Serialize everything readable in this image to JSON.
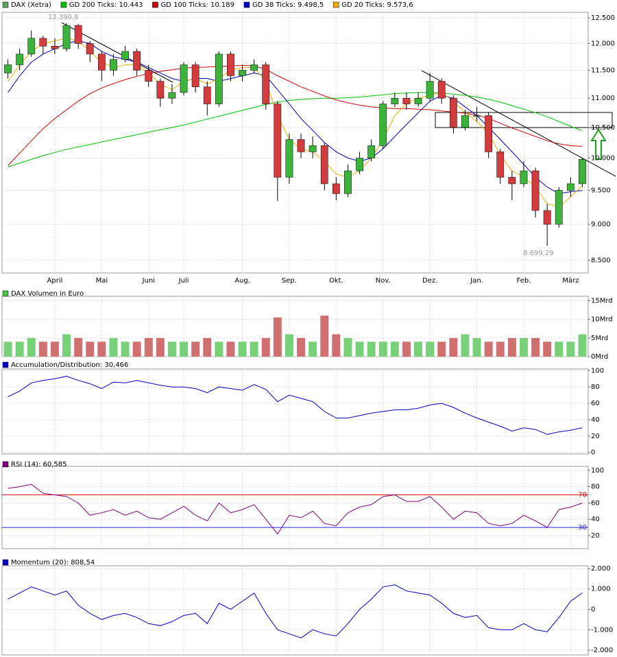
{
  "chart_data": [
    {
      "type": "candlestick",
      "title": "DAX (Xetra)",
      "log": true,
      "grid": true,
      "up_color": "#3cb43c",
      "down_color": "#d23c3c",
      "categories": [
        null,
        null,
        null,
        null,
        "April",
        null,
        null,
        null,
        "Mai",
        null,
        null,
        null,
        "Juni",
        null,
        null,
        "Juli",
        null,
        null,
        null,
        null,
        "Aug.",
        null,
        null,
        null,
        "Sep.",
        null,
        null,
        null,
        "Okt.",
        null,
        null,
        null,
        "Nov.",
        null,
        null,
        null,
        "Dez.",
        null,
        null,
        null,
        "Jan.",
        null,
        null,
        null,
        "Feb.",
        null,
        null,
        null,
        "März",
        null
      ],
      "open": [
        11450,
        11600,
        11800,
        12100,
        11950,
        11900,
        12350,
        12000,
        11800,
        11500,
        11700,
        11850,
        11500,
        11300,
        11000,
        11100,
        11600,
        11200,
        10900,
        11800,
        11400,
        11500,
        11600,
        10900,
        9700,
        10300,
        10100,
        10200,
        9600,
        9450,
        9800,
        10000,
        10200,
        10900,
        11000,
        10900,
        11000,
        11300,
        11000,
        10500,
        10700,
        10700,
        10100,
        9700,
        9600,
        9800,
        9200,
        9000,
        9500,
        9600
      ],
      "high": [
        11700,
        11900,
        12250,
        12150,
        12100,
        12391,
        12380,
        12050,
        11850,
        11800,
        11950,
        11900,
        11600,
        11350,
        11250,
        11650,
        11650,
        11300,
        11850,
        11850,
        11600,
        11700,
        11650,
        10950,
        10400,
        10400,
        10350,
        10250,
        9700,
        9900,
        10100,
        10300,
        10950,
        11100,
        11100,
        11100,
        11450,
        11350,
        11050,
        10800,
        10850,
        10750,
        10150,
        9800,
        9950,
        9850,
        9300,
        9550,
        9700,
        10000
      ],
      "low": [
        11350,
        11500,
        11750,
        11800,
        11800,
        11850,
        11900,
        11650,
        11300,
        11400,
        11650,
        11400,
        11200,
        10850,
        10900,
        11050,
        11100,
        10700,
        10850,
        11300,
        11300,
        11450,
        10800,
        9340,
        9600,
        10000,
        10000,
        9500,
        9350,
        9400,
        9750,
        9950,
        10150,
        10850,
        10800,
        10850,
        10950,
        10900,
        10400,
        10450,
        10600,
        10000,
        9600,
        9350,
        9550,
        9100,
        8699,
        8950,
        9400,
        9550
      ],
      "close": [
        11600,
        11800,
        12100,
        11950,
        11900,
        12350,
        12000,
        11800,
        11500,
        11700,
        11850,
        11500,
        11300,
        11000,
        11100,
        11600,
        11200,
        10900,
        11800,
        11400,
        11500,
        11600,
        10900,
        9700,
        10300,
        10100,
        10200,
        9600,
        9450,
        9800,
        10000,
        10200,
        10900,
        11000,
        10900,
        11000,
        11300,
        11000,
        10500,
        10700,
        10700,
        10100,
        9700,
        9600,
        9800,
        9200,
        9000,
        9500,
        9600,
        9980
      ],
      "series": [
        {
          "name": "GD 200 Ticks: 10.443",
          "color": "#00c000",
          "values": [
            9860,
            9920,
            9980,
            10040,
            10090,
            10140,
            10180,
            10220,
            10260,
            10300,
            10340,
            10380,
            10420,
            10460,
            10500,
            10540,
            10590,
            10640,
            10690,
            10740,
            10790,
            10840,
            10890,
            10930,
            10960,
            10980,
            10990,
            11000,
            11000,
            11010,
            11020,
            11040,
            11060,
            11080,
            11090,
            11100,
            11100,
            11090,
            11070,
            11050,
            11020,
            10980,
            10930,
            10870,
            10810,
            10750,
            10680,
            10600,
            10520,
            10443
          ]
        },
        {
          "name": "GD 100 Ticks: 10.189",
          "color": "#d00000",
          "values": [
            9880,
            10080,
            10280,
            10480,
            10650,
            10800,
            10950,
            11080,
            11180,
            11260,
            11330,
            11390,
            11440,
            11480,
            11510,
            11540,
            11550,
            11560,
            11570,
            11580,
            11590,
            11580,
            11520,
            11400,
            11300,
            11200,
            11120,
            11040,
            10970,
            10920,
            10880,
            10850,
            10830,
            10820,
            10820,
            10810,
            10800,
            10780,
            10760,
            10740,
            10710,
            10650,
            10570,
            10490,
            10420,
            10350,
            10280,
            10230,
            10200,
            10189
          ]
        },
        {
          "name": "GD 38 Ticks: 9.498,5",
          "color": "#0000c0",
          "values": [
            11100,
            11400,
            11650,
            11800,
            11900,
            12000,
            12050,
            12000,
            11850,
            11750,
            11700,
            11650,
            11550,
            11450,
            11350,
            11300,
            11350,
            11350,
            11300,
            11350,
            11400,
            11450,
            11400,
            11150,
            10900,
            10650,
            10450,
            10250,
            10100,
            10000,
            9950,
            10000,
            10150,
            10350,
            10550,
            10750,
            10950,
            11050,
            11000,
            10850,
            10700,
            10500,
            10300,
            10100,
            9900,
            9700,
            9550,
            9450,
            9480,
            9498.5
          ]
        },
        {
          "name": "GD 20 Ticks: 9.573,6",
          "color": "#f0b000",
          "values": [
            11300,
            11600,
            11850,
            12000,
            12050,
            12100,
            12050,
            11850,
            11650,
            11550,
            11600,
            11600,
            11450,
            11250,
            11150,
            11300,
            11350,
            11250,
            11350,
            11500,
            11550,
            11550,
            11300,
            10700,
            10300,
            10150,
            10100,
            9950,
            9750,
            9700,
            9800,
            10000,
            10300,
            10700,
            10900,
            11000,
            11050,
            11100,
            10950,
            10750,
            10600,
            10400,
            10050,
            9800,
            9700,
            9550,
            9300,
            9250,
            9400,
            9573.6
          ]
        }
      ],
      "annotations": [
        "12.390,8",
        "8.699,29"
      ],
      "ylim": [
        8330,
        12610
      ],
      "yticks": [
        {
          "value": 8500,
          "label": "8.500"
        },
        {
          "value": 9000,
          "label": "9.000"
        },
        {
          "value": 9500,
          "label": "9.500"
        },
        {
          "value": 10000,
          "label": "10.000"
        },
        {
          "value": 10500,
          "label": "10.500"
        },
        {
          "value": 11000,
          "label": "11.000"
        },
        {
          "value": 11500,
          "label": "11.500"
        },
        {
          "value": 12000,
          "label": "12.000"
        },
        {
          "value": 12500,
          "label": "12.500"
        }
      ]
    },
    {
      "type": "bar",
      "title": "DAX Volumen in Euro",
      "grid": true,
      "color": "#50c050",
      "up_color": "#78d078",
      "down_color": "#d07070",
      "values": [
        4,
        4,
        5,
        4,
        4,
        6,
        5,
        4,
        4,
        5,
        4,
        4,
        5,
        5,
        4,
        4,
        4,
        5,
        4,
        4,
        4,
        4,
        5,
        10.5,
        6,
        5,
        4,
        11,
        6,
        5,
        4,
        4,
        4,
        4,
        4,
        4,
        4,
        4,
        5,
        6,
        5,
        4,
        4,
        5,
        5,
        5,
        4,
        4,
        4,
        6
      ],
      "ylim": [
        0,
        16.2
      ],
      "yticks": [
        {
          "value": 0,
          "label": "0Mrd"
        },
        {
          "value": 5,
          "label": "5Mrd"
        },
        {
          "value": 10,
          "label": "10Mrd"
        },
        {
          "value": 15,
          "label": "15Mrd"
        }
      ]
    },
    {
      "type": "line",
      "title": "Accumulation/Distribution: 30,466",
      "grid": true,
      "color": "#0000c0",
      "values": [
        68,
        75,
        85,
        88,
        90,
        93,
        88,
        84,
        78,
        86,
        85,
        88,
        85,
        82,
        80,
        80,
        78,
        73,
        80,
        78,
        76,
        83,
        77,
        62,
        70,
        66,
        62,
        50,
        42,
        42,
        45,
        48,
        50,
        52,
        52,
        54,
        58,
        60,
        55,
        48,
        42,
        37,
        32,
        26,
        30,
        28,
        22,
        25,
        27,
        30
      ],
      "ylim": [
        -2,
        102
      ],
      "yticks": [
        0,
        20,
        40,
        60,
        80,
        100
      ]
    },
    {
      "type": "line",
      "title": "RSI (14): 60,585",
      "grid": true,
      "color": "#800080",
      "values": [
        78,
        80,
        83,
        72,
        70,
        68,
        60,
        45,
        48,
        52,
        45,
        50,
        42,
        40,
        48,
        56,
        45,
        38,
        60,
        48,
        52,
        58,
        40,
        22,
        45,
        42,
        50,
        35,
        32,
        48,
        55,
        58,
        68,
        70,
        62,
        62,
        68,
        55,
        40,
        50,
        48,
        35,
        32,
        35,
        45,
        38,
        30,
        52,
        55,
        60
      ],
      "hlines": [
        {
          "value": 70,
          "color": "#e00000"
        },
        {
          "value": 30,
          "color": "#2020e0"
        }
      ],
      "ylim": [
        4,
        105
      ],
      "yticks": [
        20,
        40,
        60,
        80,
        100
      ]
    },
    {
      "type": "line",
      "title": "Momentum (20): 808,54",
      "grid": true,
      "color": "#0000c0",
      "values": [
        500,
        800,
        1100,
        900,
        700,
        900,
        200,
        -200,
        -500,
        -300,
        -200,
        -400,
        -700,
        -800,
        -600,
        -300,
        -200,
        -700,
        300,
        0,
        400,
        800,
        -200,
        -1000,
        -1200,
        -1400,
        -1000,
        -1200,
        -1300,
        -700,
        0,
        500,
        1100,
        1200,
        900,
        800,
        700,
        300,
        -200,
        -400,
        -300,
        -900,
        -1000,
        -1000,
        -700,
        -1000,
        -1100,
        -400,
        400,
        808.54
      ],
      "ylim": [
        -2235,
        2134
      ],
      "yticks": [
        {
          "value": -2000,
          "label": "-2.000"
        },
        {
          "value": -1000,
          "label": "-1.000"
        },
        0,
        {
          "value": 1000,
          "label": "1.000"
        },
        {
          "value": 2000,
          "label": "2.000"
        }
      ]
    }
  ]
}
